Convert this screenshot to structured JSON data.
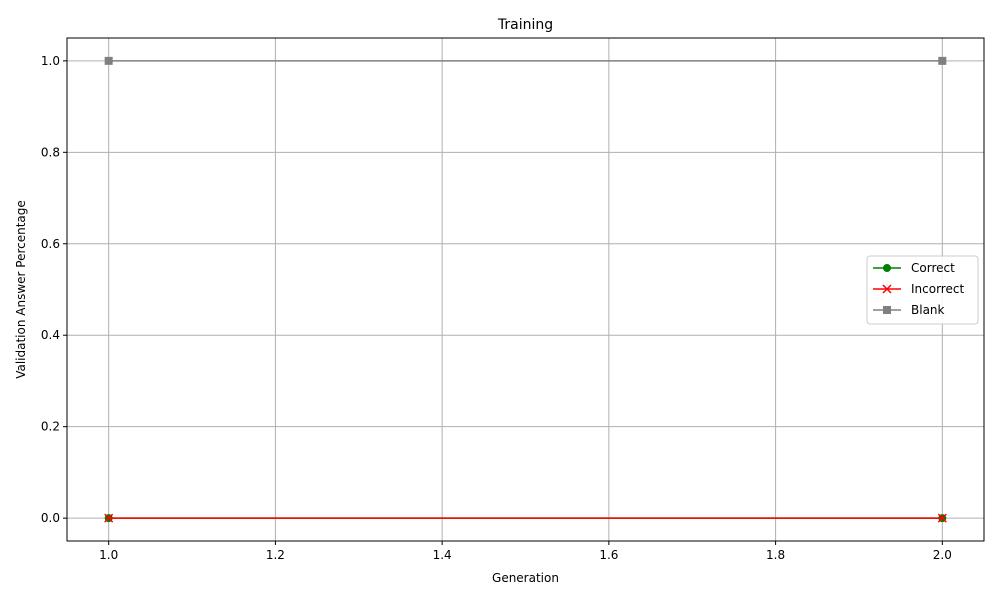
{
  "chart_data": {
    "type": "line",
    "title": "Training",
    "xlabel": "Generation",
    "ylabel": "Validation Answer Percentage",
    "xlim": [
      0.95,
      2.05
    ],
    "ylim": [
      -0.05,
      1.05
    ],
    "xticks": [
      1.0,
      1.2,
      1.4,
      1.6,
      1.8,
      2.0
    ],
    "xtick_labels": [
      "1.0",
      "1.2",
      "1.4",
      "1.6",
      "1.8",
      "2.0"
    ],
    "yticks": [
      0.0,
      0.2,
      0.4,
      0.6,
      0.8,
      1.0
    ],
    "ytick_labels": [
      "0.0",
      "0.2",
      "0.4",
      "0.6",
      "0.8",
      "1.0"
    ],
    "grid": true,
    "legend_position": "center-right",
    "series": [
      {
        "name": "Correct",
        "x": [
          1,
          2
        ],
        "y": [
          0.0,
          0.0
        ],
        "color": "#008000",
        "marker": "circle"
      },
      {
        "name": "Incorrect",
        "x": [
          1,
          2
        ],
        "y": [
          0.0,
          0.0
        ],
        "color": "#ff0000",
        "marker": "x"
      },
      {
        "name": "Blank",
        "x": [
          1,
          2
        ],
        "y": [
          1.0,
          1.0
        ],
        "color": "#808080",
        "marker": "square"
      }
    ]
  }
}
